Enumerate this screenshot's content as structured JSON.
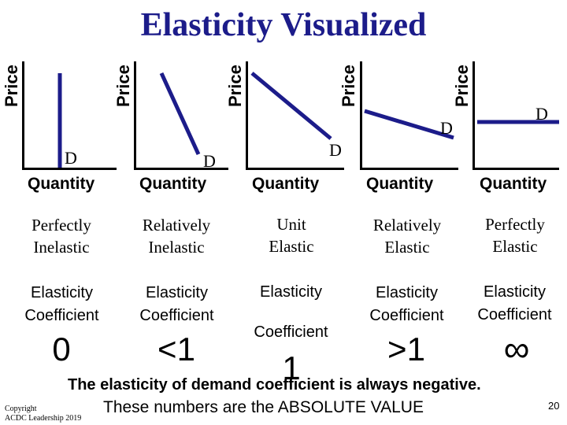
{
  "title": "Elasticity Visualized",
  "axes": {
    "y_label": "Price",
    "x_label": "Quantity"
  },
  "curve_label": "D",
  "panels": [
    {
      "line1": "Perfectly",
      "line2": "Inelastic",
      "coef1": "Elasticity",
      "coef2": "Coefficient",
      "value": "0"
    },
    {
      "line1": "Relatively",
      "line2": "Inelastic",
      "coef1": "Elasticity",
      "coef2": "Coefficient",
      "value": "<1"
    },
    {
      "line1": "Unit",
      "line2": "Elastic",
      "coef1": "Elasticity",
      "coef2": "Coefficient",
      "value": "1"
    },
    {
      "line1": "Relatively",
      "line2": "Elastic",
      "coef1": "Elasticity",
      "coef2": "Coefficient",
      "value": ">1"
    },
    {
      "line1": "Perfectly",
      "line2": "Elastic",
      "coef1": "Elasticity",
      "coef2": "Coefficient",
      "value": "∞"
    }
  ],
  "note_line1": "The elasticity of demand coefficient is always negative.",
  "note_line2": "These numbers are the ABSOLUTE VALUE",
  "copyright_line1": "Copyright",
  "copyright_line2": "ACDC Leadership 2019",
  "page_number": "20",
  "colors": {
    "title": "#1c1c8a",
    "curve": "#1c1c8a"
  }
}
